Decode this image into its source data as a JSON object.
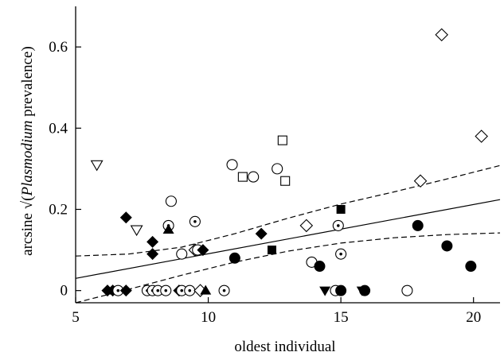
{
  "chart_data": {
    "type": "scatter",
    "title": "",
    "xlabel": "oldest individual",
    "ylabel_prefix": "arcsine √(",
    "ylabel_italic": "Plasmodium",
    "ylabel_suffix": " prevalence)",
    "xlim": [
      5,
      21
    ],
    "ylim": [
      -0.03,
      0.7
    ],
    "x_ticks": [
      5,
      10,
      15,
      20
    ],
    "x_tick_labels": [
      "5",
      "10",
      "15",
      "20"
    ],
    "y_ticks": [
      0,
      0.2,
      0.4,
      0.6
    ],
    "y_tick_labels": [
      "0",
      "0.2",
      "0.4",
      "0.6"
    ],
    "grid": false,
    "fit_line": {
      "x": [
        5,
        21
      ],
      "y": [
        0.03,
        0.224
      ]
    },
    "ci_upper": {
      "x": [
        5,
        7,
        9,
        11,
        13,
        15,
        17,
        19,
        21
      ],
      "y": [
        0.085,
        0.09,
        0.107,
        0.14,
        0.178,
        0.213,
        0.243,
        0.275,
        0.308
      ]
    },
    "ci_lower": {
      "x": [
        5,
        7,
        9,
        11,
        13,
        15,
        17,
        19,
        21
      ],
      "y": [
        -0.03,
        0.003,
        0.038,
        0.07,
        0.097,
        0.117,
        0.13,
        0.138,
        0.142
      ]
    },
    "points": [
      {
        "x": 5.8,
        "y": 0.31,
        "m": "tri-down-open"
      },
      {
        "x": 6.2,
        "y": 0.0,
        "m": "diamond-filled"
      },
      {
        "x": 6.4,
        "y": 0.0,
        "m": "diamond-filled"
      },
      {
        "x": 6.6,
        "y": 0.0,
        "m": "circle-dot"
      },
      {
        "x": 6.9,
        "y": 0.0,
        "m": "diamond-filled"
      },
      {
        "x": 6.9,
        "y": 0.18,
        "m": "diamond-filled"
      },
      {
        "x": 7.3,
        "y": 0.15,
        "m": "tri-down-open"
      },
      {
        "x": 7.7,
        "y": 0.0,
        "m": "circle-dot"
      },
      {
        "x": 7.9,
        "y": 0.0,
        "m": "circle-dot"
      },
      {
        "x": 7.9,
        "y": 0.12,
        "m": "diamond-filled"
      },
      {
        "x": 7.9,
        "y": 0.09,
        "m": "diamond-filled"
      },
      {
        "x": 8.1,
        "y": 0.0,
        "m": "circle-dot"
      },
      {
        "x": 8.4,
        "y": 0.0,
        "m": "circle-dot"
      },
      {
        "x": 8.5,
        "y": 0.16,
        "m": "circle-dot"
      },
      {
        "x": 8.5,
        "y": 0.15,
        "m": "tri-up-filled"
      },
      {
        "x": 8.6,
        "y": 0.22,
        "m": "circle-open"
      },
      {
        "x": 8.9,
        "y": 0.0,
        "m": "diamond-filled"
      },
      {
        "x": 9.0,
        "y": 0.09,
        "m": "circle-open"
      },
      {
        "x": 9.0,
        "y": 0.0,
        "m": "circle-dot"
      },
      {
        "x": 9.3,
        "y": 0.0,
        "m": "circle-dot"
      },
      {
        "x": 9.5,
        "y": 0.17,
        "m": "circle-dot"
      },
      {
        "x": 9.5,
        "y": 0.1,
        "m": "diamond-open"
      },
      {
        "x": 9.6,
        "y": 0.1,
        "m": "circle-open"
      },
      {
        "x": 9.7,
        "y": 0.0,
        "m": "diamond-open"
      },
      {
        "x": 9.8,
        "y": 0.1,
        "m": "diamond-filled"
      },
      {
        "x": 9.9,
        "y": 0.0,
        "m": "tri-up-filled"
      },
      {
        "x": 10.6,
        "y": 0.0,
        "m": "circle-dot"
      },
      {
        "x": 10.9,
        "y": 0.31,
        "m": "circle-open"
      },
      {
        "x": 11.0,
        "y": 0.08,
        "m": "circle-filled"
      },
      {
        "x": 11.3,
        "y": 0.28,
        "m": "square-open"
      },
      {
        "x": 11.7,
        "y": 0.28,
        "m": "circle-open"
      },
      {
        "x": 12.0,
        "y": 0.14,
        "m": "diamond-filled"
      },
      {
        "x": 12.4,
        "y": 0.1,
        "m": "square-filled"
      },
      {
        "x": 12.6,
        "y": 0.3,
        "m": "circle-open"
      },
      {
        "x": 12.8,
        "y": 0.37,
        "m": "square-open"
      },
      {
        "x": 12.9,
        "y": 0.27,
        "m": "square-open"
      },
      {
        "x": 13.7,
        "y": 0.16,
        "m": "diamond-open"
      },
      {
        "x": 13.9,
        "y": 0.07,
        "m": "circle-open"
      },
      {
        "x": 14.2,
        "y": 0.06,
        "m": "circle-filled"
      },
      {
        "x": 14.4,
        "y": 0.0,
        "m": "tri-down-filled"
      },
      {
        "x": 14.8,
        "y": 0.0,
        "m": "circle-open"
      },
      {
        "x": 14.9,
        "y": 0.16,
        "m": "circle-dot"
      },
      {
        "x": 15.0,
        "y": 0.2,
        "m": "square-filled"
      },
      {
        "x": 15.0,
        "y": 0.09,
        "m": "circle-dot"
      },
      {
        "x": 15.0,
        "y": 0.0,
        "m": "circle-filled"
      },
      {
        "x": 15.8,
        "y": 0.0,
        "m": "tri-down-filled"
      },
      {
        "x": 15.9,
        "y": 0.0,
        "m": "circle-filled"
      },
      {
        "x": 17.5,
        "y": 0.0,
        "m": "circle-open"
      },
      {
        "x": 17.9,
        "y": 0.16,
        "m": "circle-filled"
      },
      {
        "x": 18.0,
        "y": 0.27,
        "m": "diamond-open"
      },
      {
        "x": 18.8,
        "y": 0.63,
        "m": "diamond-open"
      },
      {
        "x": 19.0,
        "y": 0.11,
        "m": "circle-filled"
      },
      {
        "x": 19.9,
        "y": 0.06,
        "m": "circle-filled"
      },
      {
        "x": 20.3,
        "y": 0.38,
        "m": "diamond-open"
      }
    ]
  }
}
